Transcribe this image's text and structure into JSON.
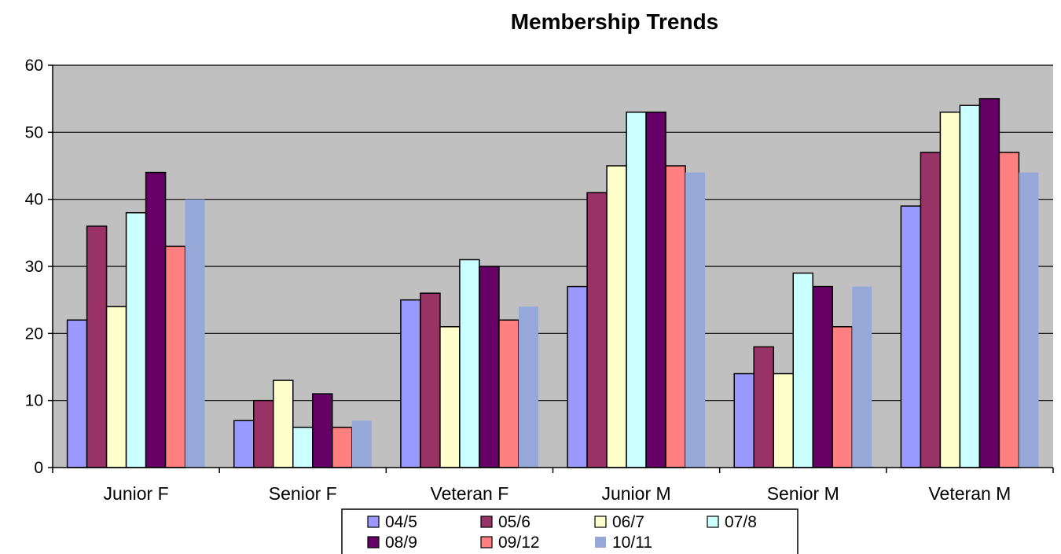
{
  "chart_data": {
    "type": "bar",
    "title": "Membership Trends",
    "xlabel": "",
    "ylabel": "",
    "ylim": [
      0,
      60
    ],
    "yticks": [
      0,
      10,
      20,
      30,
      40,
      50,
      60
    ],
    "grid": true,
    "legend_position": "bottom",
    "categories": [
      "Junior  F",
      "Senior F",
      "Veteran F",
      "Junior M",
      "Senior M",
      "Veteran M"
    ],
    "series": [
      {
        "name": "04/5",
        "color": "#9999ff",
        "values": [
          22,
          7,
          25,
          27,
          14,
          39
        ]
      },
      {
        "name": "05/6",
        "color": "#993366",
        "values": [
          36,
          10,
          26,
          41,
          18,
          47
        ]
      },
      {
        "name": "06/7",
        "color": "#ffffcc",
        "values": [
          24,
          13,
          21,
          45,
          14,
          53
        ]
      },
      {
        "name": "07/8",
        "color": "#ccffff",
        "values": [
          38,
          6,
          31,
          53,
          29,
          54
        ]
      },
      {
        "name": "08/9",
        "color": "#660066",
        "values": [
          44,
          11,
          30,
          53,
          27,
          55
        ]
      },
      {
        "name": "09/12",
        "color": "#ff8080",
        "values": [
          33,
          6,
          22,
          45,
          21,
          47
        ]
      },
      {
        "name": "10/11",
        "color": "#95a8d8",
        "values": [
          40,
          7,
          24,
          44,
          27,
          44
        ]
      }
    ],
    "plot_background": "#c0c0c0"
  }
}
